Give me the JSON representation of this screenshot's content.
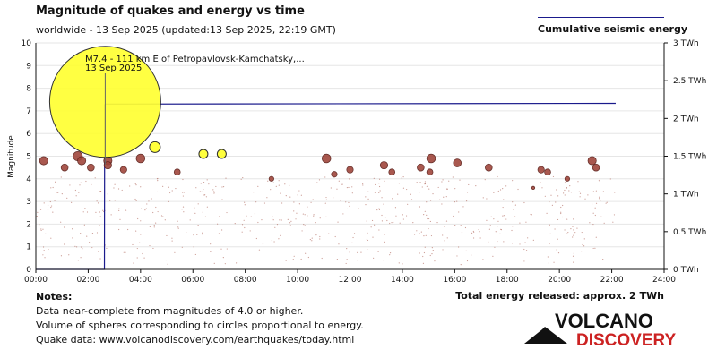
{
  "header": {
    "title": "Magnitude of quakes and energy vs time",
    "subtitle": "worldwide - 13 Sep 2025 (updated:13 Sep 2025, 22:19 GMT)"
  },
  "legend": {
    "label": "Cumulative seismic energy"
  },
  "notes": {
    "heading": "Notes:",
    "lines": [
      "Data near-complete from magnitudes of 4.0 or higher.",
      "Volume of spheres corresponding to circles proportional to energy.",
      "Quake data: www.volcanodiscovery.com/earthquakes/today.html"
    ]
  },
  "total_energy": "Total energy released: approx. 2 TWh",
  "logo": {
    "line1": "VOLCANO",
    "line2": "DISCOVERY"
  },
  "colors": {
    "accent": "#ffff33",
    "line": "#1a1a8c",
    "quake": "#a0463c",
    "logo_red": "#cc2222"
  },
  "chart_data": {
    "type": "scatter",
    "ylabel": "Magnitude",
    "y2label": "",
    "xlim": [
      "00:00",
      "24:00"
    ],
    "ylim": [
      0,
      10
    ],
    "y2lim": [
      0,
      3
    ],
    "x_ticks": [
      "00:00",
      "02:00",
      "04:00",
      "06:00",
      "08:00",
      "10:00",
      "12:00",
      "14:00",
      "16:00",
      "18:00",
      "20:00",
      "22:00",
      "24:00"
    ],
    "y_ticks": [
      "0",
      "1",
      "2",
      "3",
      "4",
      "5",
      "6",
      "7",
      "8",
      "9",
      "10"
    ],
    "y2_ticks": [
      "0 TWh",
      "0.5 TWh",
      "1 TWh",
      "1.5 TWh",
      "2 TWh",
      "2.5 TWh",
      "3 TWh"
    ],
    "annotation": {
      "line1": "M7.4 - 111 km E of Petropavlovsk-Kamchatsky,...",
      "line2": "13 Sep 2025"
    },
    "energy_series": {
      "x_hours": [
        0,
        2.62,
        2.63,
        2.65,
        22.15
      ],
      "energy_twh": [
        0,
        0.0,
        2.18,
        2.19,
        2.2
      ]
    },
    "large_quakes": [
      {
        "t": 2.65,
        "mag": 7.4
      },
      {
        "t": 4.55,
        "mag": 5.4
      },
      {
        "t": 6.4,
        "mag": 5.1
      },
      {
        "t": 7.1,
        "mag": 5.1
      }
    ],
    "quakes": [
      {
        "t": 0.3,
        "mag": 4.8
      },
      {
        "t": 1.1,
        "mag": 4.5
      },
      {
        "t": 1.6,
        "mag": 5.0
      },
      {
        "t": 1.75,
        "mag": 4.8
      },
      {
        "t": 2.1,
        "mag": 4.5
      },
      {
        "t": 2.75,
        "mag": 4.8
      },
      {
        "t": 2.75,
        "mag": 4.6
      },
      {
        "t": 3.35,
        "mag": 4.4
      },
      {
        "t": 4.0,
        "mag": 4.9
      },
      {
        "t": 5.4,
        "mag": 4.3
      },
      {
        "t": 9.0,
        "mag": 4.0
      },
      {
        "t": 11.1,
        "mag": 4.9
      },
      {
        "t": 11.4,
        "mag": 4.2
      },
      {
        "t": 12.0,
        "mag": 4.4
      },
      {
        "t": 13.3,
        "mag": 4.6
      },
      {
        "t": 13.6,
        "mag": 4.3
      },
      {
        "t": 14.7,
        "mag": 4.5
      },
      {
        "t": 15.1,
        "mag": 4.9
      },
      {
        "t": 15.05,
        "mag": 4.3
      },
      {
        "t": 16.1,
        "mag": 4.7
      },
      {
        "t": 17.3,
        "mag": 4.5
      },
      {
        "t": 19.3,
        "mag": 4.4
      },
      {
        "t": 19.55,
        "mag": 4.3
      },
      {
        "t": 20.3,
        "mag": 4.0
      },
      {
        "t": 21.25,
        "mag": 4.8
      },
      {
        "t": 21.4,
        "mag": 4.5
      },
      {
        "t": 19.0,
        "mag": 3.6
      }
    ]
  }
}
